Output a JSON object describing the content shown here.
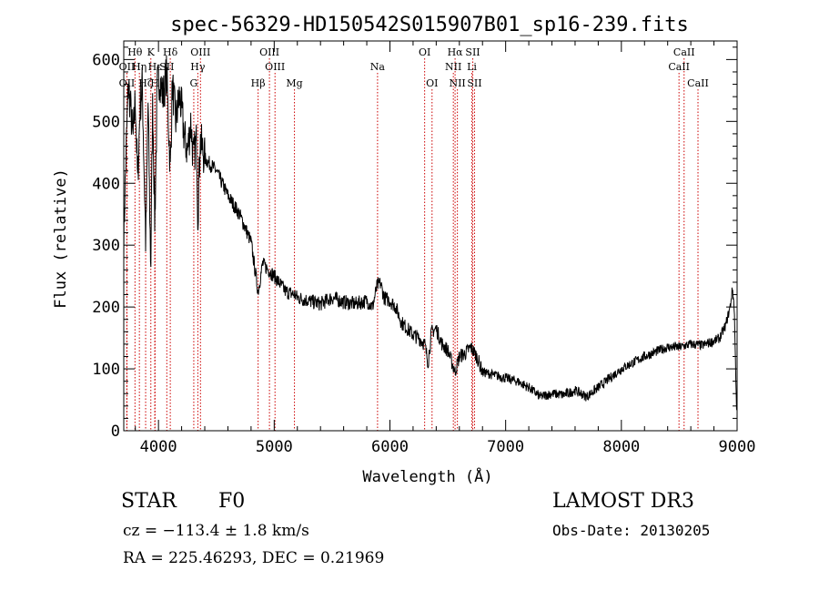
{
  "chart_data": {
    "type": "line",
    "title": "spec-56329-HD150542S015907B01_sp16-239.fits",
    "xlabel": "Wavelength (Å)",
    "ylabel": "Flux (relative)",
    "xlim": [
      3700,
      9000
    ],
    "ylim": [
      0,
      630
    ],
    "x_ticks": [
      4000,
      5000,
      6000,
      7000,
      8000,
      9000
    ],
    "y_ticks": [
      0,
      100,
      200,
      300,
      400,
      500,
      600
    ],
    "grid": false,
    "legend": "none",
    "line_color": "#000000",
    "marker_color": "#cc0000",
    "anchors": [
      [
        3700,
        310
      ],
      [
        3720,
        450
      ],
      [
        3740,
        560
      ],
      [
        3760,
        520
      ],
      [
        3780,
        470
      ],
      [
        3800,
        540
      ],
      [
        3820,
        400
      ],
      [
        3840,
        520
      ],
      [
        3860,
        560
      ],
      [
        3890,
        300
      ],
      [
        3910,
        530
      ],
      [
        3933,
        260
      ],
      [
        3950,
        540
      ],
      [
        3968,
        330
      ],
      [
        3990,
        560
      ],
      [
        4010,
        570
      ],
      [
        4040,
        540
      ],
      [
        4070,
        580
      ],
      [
        4102,
        420
      ],
      [
        4120,
        560
      ],
      [
        4150,
        500
      ],
      [
        4180,
        540
      ],
      [
        4200,
        520
      ],
      [
        4220,
        480
      ],
      [
        4250,
        450
      ],
      [
        4280,
        500
      ],
      [
        4300,
        440
      ],
      [
        4330,
        470
      ],
      [
        4340,
        340
      ],
      [
        4360,
        470
      ],
      [
        4400,
        440
      ],
      [
        4500,
        420
      ],
      [
        4600,
        380
      ],
      [
        4700,
        350
      ],
      [
        4800,
        305
      ],
      [
        4861,
        225
      ],
      [
        4900,
        270
      ],
      [
        4950,
        260
      ],
      [
        5000,
        250
      ],
      [
        5100,
        225
      ],
      [
        5175,
        220
      ],
      [
        5200,
        215
      ],
      [
        5300,
        210
      ],
      [
        5400,
        205
      ],
      [
        5500,
        215
      ],
      [
        5600,
        208
      ],
      [
        5700,
        205
      ],
      [
        5800,
        210
      ],
      [
        5850,
        200
      ],
      [
        5890,
        235
      ],
      [
        5920,
        238
      ],
      [
        5950,
        215
      ],
      [
        6000,
        210
      ],
      [
        6050,
        200
      ],
      [
        6100,
        175
      ],
      [
        6150,
        165
      ],
      [
        6200,
        155
      ],
      [
        6250,
        150
      ],
      [
        6300,
        140
      ],
      [
        6330,
        110
      ],
      [
        6360,
        160
      ],
      [
        6400,
        165
      ],
      [
        6450,
        140
      ],
      [
        6500,
        130
      ],
      [
        6563,
        95
      ],
      [
        6600,
        120
      ],
      [
        6650,
        125
      ],
      [
        6700,
        135
      ],
      [
        6750,
        120
      ],
      [
        6800,
        95
      ],
      [
        6900,
        90
      ],
      [
        7000,
        85
      ],
      [
        7100,
        80
      ],
      [
        7200,
        70
      ],
      [
        7300,
        55
      ],
      [
        7400,
        60
      ],
      [
        7500,
        58
      ],
      [
        7600,
        65
      ],
      [
        7700,
        55
      ],
      [
        7800,
        70
      ],
      [
        7900,
        85
      ],
      [
        8000,
        100
      ],
      [
        8100,
        110
      ],
      [
        8200,
        120
      ],
      [
        8300,
        128
      ],
      [
        8400,
        135
      ],
      [
        8500,
        135
      ],
      [
        8600,
        140
      ],
      [
        8700,
        138
      ],
      [
        8800,
        145
      ],
      [
        8850,
        150
      ],
      [
        8900,
        170
      ],
      [
        8940,
        200
      ],
      [
        8960,
        230
      ],
      [
        8975,
        200
      ],
      [
        8985,
        120
      ],
      [
        8995,
        40
      ],
      [
        9000,
        30
      ]
    ],
    "lines": [
      {
        "name": "Hθ",
        "wave": 3797,
        "row": 0
      },
      {
        "name": "OII",
        "wave": 3727,
        "row": 1
      },
      {
        "name": "OII",
        "wave": 3727,
        "row": 2
      },
      {
        "name": "Hη",
        "wave": 3835,
        "row": 1
      },
      {
        "name": "Hζ",
        "wave": 3889,
        "row": 2
      },
      {
        "name": "K",
        "wave": 3934,
        "row": 0
      },
      {
        "name": "Hε",
        "wave": 3970,
        "row": 1
      },
      {
        "name": "H",
        "wave": 3968,
        "row": 2
      },
      {
        "name": "SII",
        "wave": 4072,
        "row": 1
      },
      {
        "name": "Hδ",
        "wave": 4102,
        "row": 0
      },
      {
        "name": "OIII",
        "wave": 4363,
        "row": 0
      },
      {
        "name": "Hγ",
        "wave": 4340,
        "row": 1
      },
      {
        "name": "G",
        "wave": 4305,
        "row": 2
      },
      {
        "name": "Hβ",
        "wave": 4861,
        "row": 2
      },
      {
        "name": "OIII",
        "wave": 4959,
        "row": 0
      },
      {
        "name": "OIII",
        "wave": 5007,
        "row": 1
      },
      {
        "name": "Mg",
        "wave": 5175,
        "row": 2
      },
      {
        "name": "Na",
        "wave": 5893,
        "row": 1
      },
      {
        "name": "OI",
        "wave": 6300,
        "row": 0
      },
      {
        "name": "OI",
        "wave": 6364,
        "row": 2
      },
      {
        "name": "Hα",
        "wave": 6563,
        "row": 0
      },
      {
        "name": "SII",
        "wave": 6716,
        "row": 0
      },
      {
        "name": "NII",
        "wave": 6548,
        "row": 1
      },
      {
        "name": "Li",
        "wave": 6708,
        "row": 1
      },
      {
        "name": "NII",
        "wave": 6583,
        "row": 2
      },
      {
        "name": "SII",
        "wave": 6731,
        "row": 2
      },
      {
        "name": "CaII",
        "wave": 8542,
        "row": 0
      },
      {
        "name": "CaII",
        "wave": 8498,
        "row": 1
      },
      {
        "name": "CaII",
        "wave": 8662,
        "row": 2
      }
    ]
  },
  "footer": {
    "class_label": "STAR",
    "subclass": "F0",
    "cz_line": "cz = −113.4 ± 1.8 km/s",
    "radec_line": "RA = 225.46293, DEC =    0.21969",
    "survey": "LAMOST DR3",
    "obs_date": "Obs-Date: 20130205"
  }
}
